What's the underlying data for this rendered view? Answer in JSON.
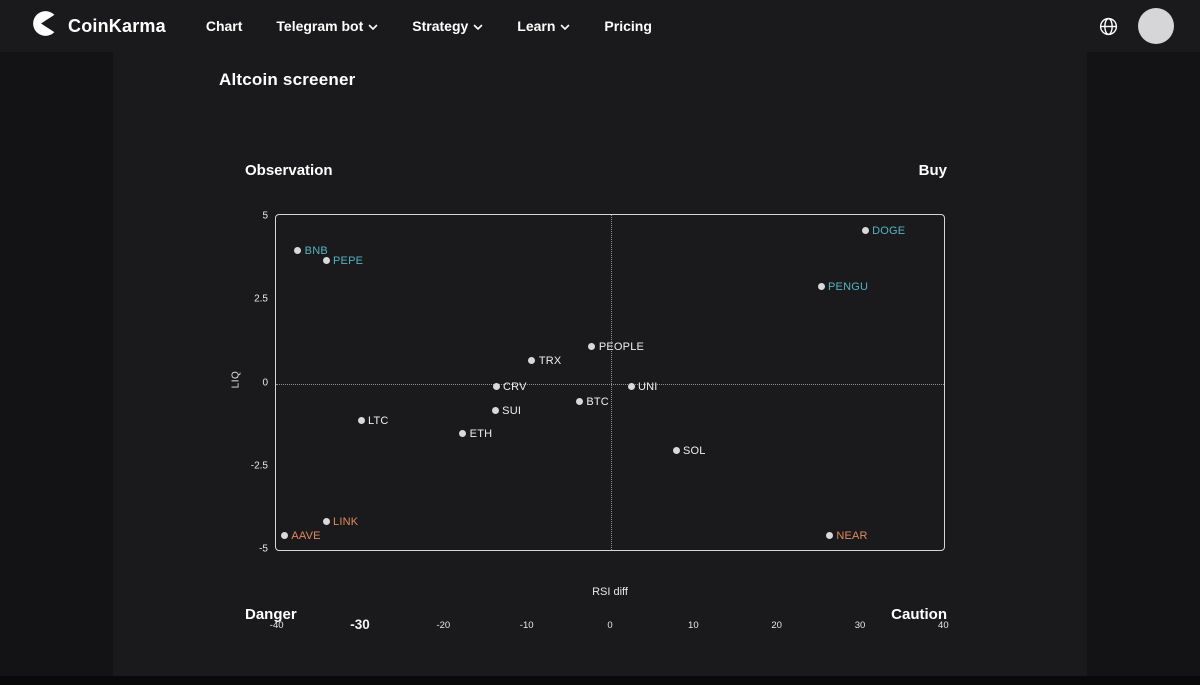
{
  "nav": {
    "brand": "CoinKarma",
    "logo_icon": "coinkarma-logo",
    "items": [
      {
        "label": "Chart",
        "has_dropdown": false
      },
      {
        "label": "Telegram bot",
        "has_dropdown": true
      },
      {
        "label": "Strategy",
        "has_dropdown": true
      },
      {
        "label": "Learn",
        "has_dropdown": true
      },
      {
        "label": "Pricing",
        "has_dropdown": false
      }
    ],
    "right": {
      "globe_icon": "language-globe",
      "avatar": "user-avatar"
    }
  },
  "page": {
    "title": "Altcoin screener"
  },
  "quadrants": {
    "top_left": "Observation",
    "top_right": "Buy",
    "bottom_left": "Danger",
    "bottom_right": "Caution"
  },
  "chart_data": {
    "type": "scatter",
    "xlabel": "RSI diff",
    "ylabel": "LIQ",
    "xlim": [
      -40,
      40
    ],
    "ylim": [
      -5,
      5
    ],
    "x_ticks": [
      -40,
      -30,
      -20,
      -10,
      0,
      10,
      20,
      30,
      40
    ],
    "y_ticks": [
      5,
      2.5,
      0,
      -2.5,
      -5
    ],
    "highlighted_x_tick": -30,
    "grid": "zero-lines-dotted",
    "colors": {
      "teal": "#55b3c1",
      "orange": "#e18a5f",
      "white": "#efefef",
      "dot": "#d9d9d9"
    },
    "points": [
      {
        "label": "DOGE",
        "x": 30.5,
        "y": 4.6,
        "color": "teal"
      },
      {
        "label": "BNB",
        "x": -37.6,
        "y": 4.0,
        "color": "teal"
      },
      {
        "label": "PEPE",
        "x": -34.2,
        "y": 3.7,
        "color": "teal"
      },
      {
        "label": "PENGU",
        "x": 25.2,
        "y": 2.9,
        "color": "teal"
      },
      {
        "label": "PEOPLE",
        "x": -2.3,
        "y": 1.1,
        "color": "white"
      },
      {
        "label": "TRX",
        "x": -9.5,
        "y": 0.7,
        "color": "white"
      },
      {
        "label": "CRV",
        "x": -13.8,
        "y": -0.1,
        "color": "white"
      },
      {
        "label": "UNI",
        "x": 2.4,
        "y": -0.1,
        "color": "white"
      },
      {
        "label": "BTC",
        "x": -3.8,
        "y": -0.55,
        "color": "white"
      },
      {
        "label": "SUI",
        "x": -13.9,
        "y": -0.8,
        "color": "white"
      },
      {
        "label": "LTC",
        "x": -30.0,
        "y": -1.1,
        "color": "white"
      },
      {
        "label": "ETH",
        "x": -17.8,
        "y": -1.5,
        "color": "white"
      },
      {
        "label": "SOL",
        "x": 7.8,
        "y": -2.0,
        "color": "white"
      },
      {
        "label": "LINK",
        "x": -34.2,
        "y": -4.15,
        "color": "orange"
      },
      {
        "label": "AAVE",
        "x": -39.2,
        "y": -4.55,
        "color": "orange"
      },
      {
        "label": "NEAR",
        "x": 26.2,
        "y": -4.55,
        "color": "orange"
      }
    ]
  }
}
